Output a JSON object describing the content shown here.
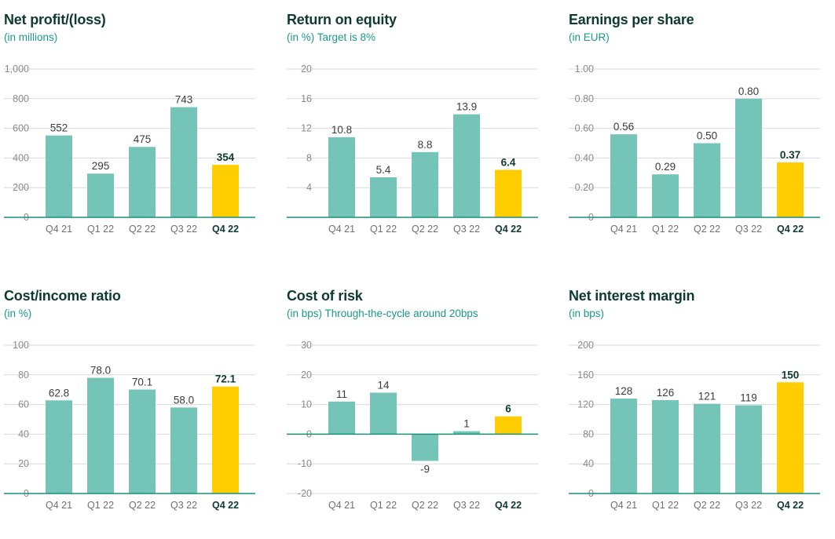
{
  "colors": {
    "bar": "#75c4b8",
    "highlight": "#ffcd00",
    "axis": "#1a8f7a"
  },
  "chart_data": [
    {
      "type": "bar",
      "title": "Net profit/(loss)",
      "subtitle": "(in millions)",
      "categories": [
        "Q4 21",
        "Q1 22",
        "Q2 22",
        "Q3 22",
        "Q4 22"
      ],
      "values": [
        552,
        295,
        475,
        743,
        354
      ],
      "value_labels": [
        "552",
        "295",
        "475",
        "743",
        "354"
      ],
      "ylim": [
        0,
        1000
      ],
      "yticks": [
        0,
        200,
        400,
        600,
        800,
        1000
      ],
      "ytick_labels": [
        "0",
        "200",
        "400",
        "600",
        "800",
        "1,000"
      ],
      "highlight_index": 4
    },
    {
      "type": "bar",
      "title": "Return on equity",
      "subtitle": "(in %) Target is 8%",
      "categories": [
        "Q4 21",
        "Q1 22",
        "Q2 22",
        "Q3 22",
        "Q4 22"
      ],
      "values": [
        10.8,
        5.4,
        8.8,
        13.9,
        6.4
      ],
      "value_labels": [
        "10.8",
        "5.4",
        "8.8",
        "13.9",
        "6.4"
      ],
      "ylim": [
        0,
        20
      ],
      "yticks": [
        4,
        8,
        12,
        16,
        20
      ],
      "ytick_labels": [
        "4",
        "8",
        "12",
        "16",
        "20"
      ],
      "highlight_index": 4
    },
    {
      "type": "bar",
      "title": "Earnings per share",
      "subtitle": "(in EUR)",
      "categories": [
        "Q4 21",
        "Q1 22",
        "Q2 22",
        "Q3 22",
        "Q4 22"
      ],
      "values": [
        0.56,
        0.29,
        0.5,
        0.8,
        0.37
      ],
      "value_labels": [
        "0.56",
        "0.29",
        "0.50",
        "0.80",
        "0.37"
      ],
      "ylim": [
        0,
        1.0
      ],
      "yticks": [
        0,
        0.2,
        0.4,
        0.6,
        0.8,
        1.0
      ],
      "ytick_labels": [
        "0",
        "0.20",
        "0.40",
        "0.60",
        "0.80",
        "1.00"
      ],
      "highlight_index": 4
    },
    {
      "type": "bar",
      "title": "Cost/income ratio",
      "subtitle": "(in %)",
      "categories": [
        "Q4 21",
        "Q1 22",
        "Q2 22",
        "Q3 22",
        "Q4 22"
      ],
      "values": [
        62.8,
        78.0,
        70.1,
        58.0,
        72.1
      ],
      "value_labels": [
        "62.8",
        "78.0",
        "70.1",
        "58.0",
        "72.1"
      ],
      "ylim": [
        0,
        100
      ],
      "yticks": [
        0,
        20,
        40,
        60,
        80,
        100
      ],
      "ytick_labels": [
        "0",
        "20",
        "40",
        "60",
        "80",
        "100"
      ],
      "highlight_index": 4
    },
    {
      "type": "bar",
      "title": "Cost of risk",
      "subtitle": "(in bps) Through-the-cycle around 20bps",
      "categories": [
        "Q4 21",
        "Q1 22",
        "Q2 22",
        "Q3 22",
        "Q4 22"
      ],
      "values": [
        11,
        14,
        -9,
        1,
        6
      ],
      "value_labels": [
        "11",
        "14",
        "-9",
        "1",
        "6"
      ],
      "ylim": [
        -20,
        30
      ],
      "yticks": [
        -20,
        -10,
        0,
        10,
        20,
        30
      ],
      "ytick_labels": [
        "-20",
        "-10",
        "0",
        "10",
        "20",
        "30"
      ],
      "highlight_index": 4
    },
    {
      "type": "bar",
      "title": "Net interest margin",
      "subtitle": "(in bps)",
      "categories": [
        "Q4 21",
        "Q1 22",
        "Q2 22",
        "Q3 22",
        "Q4 22"
      ],
      "values": [
        128,
        126,
        121,
        119,
        150
      ],
      "value_labels": [
        "128",
        "126",
        "121",
        "119",
        "150"
      ],
      "ylim": [
        0,
        200
      ],
      "yticks": [
        0,
        40,
        80,
        120,
        160,
        200
      ],
      "ytick_labels": [
        "0",
        "40",
        "80",
        "120",
        "160",
        "200"
      ],
      "highlight_index": 4
    }
  ]
}
